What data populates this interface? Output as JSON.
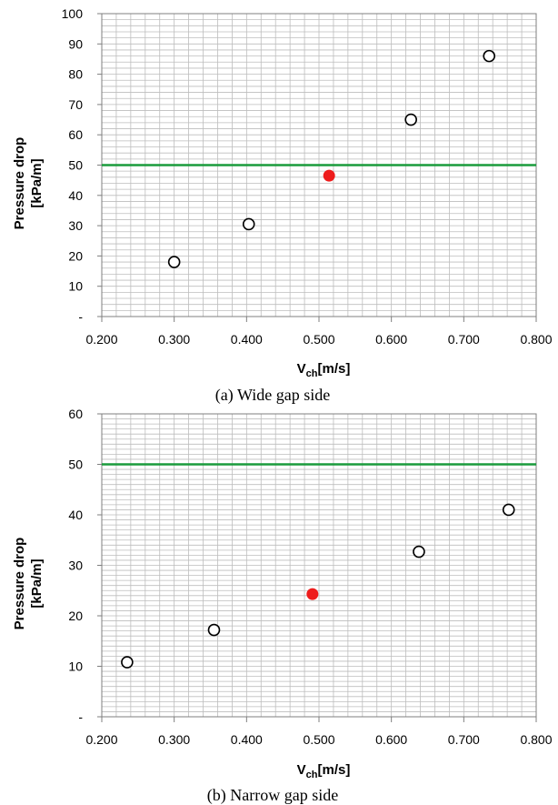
{
  "chart_data": [
    {
      "type": "scatter",
      "xlabel_main": "V",
      "xlabel_sub": "ch",
      "xlabel_rest": "[m/s]",
      "ylabel_line1": "Pressure drop",
      "ylabel_line2": "[kPa/m]",
      "caption": "(a)  Wide  gap  side",
      "xlim": [
        0.2,
        0.8
      ],
      "ylim": [
        0,
        100
      ],
      "x_ticks": [
        0.2,
        0.3,
        0.4,
        0.5,
        0.6,
        0.7,
        0.8
      ],
      "x_tick_labels": [
        "0.200",
        "0.300",
        "0.400",
        "0.500",
        "0.600",
        "0.700",
        "0.800"
      ],
      "y_ticks": [
        0,
        10,
        20,
        30,
        40,
        50,
        60,
        70,
        80,
        90,
        100
      ],
      "y_tick_labels": [
        "-",
        "10",
        "20",
        "30",
        "40",
        "50",
        "60",
        "70",
        "80",
        "90",
        "100"
      ],
      "grid": true,
      "reference_line": {
        "y": 50,
        "color": "#1a9b3c"
      },
      "open_points": [
        {
          "x": 0.3,
          "y": 18
        },
        {
          "x": 0.403,
          "y": 30.5
        },
        {
          "x": 0.627,
          "y": 65
        },
        {
          "x": 0.735,
          "y": 86
        }
      ],
      "highlight_points": [
        {
          "x": 0.514,
          "y": 46.5,
          "color": "#ee1c1c"
        }
      ]
    },
    {
      "type": "scatter",
      "xlabel_main": "V",
      "xlabel_sub": "ch",
      "xlabel_rest": "[m/s]",
      "ylabel_line1": "Pressure drop",
      "ylabel_line2": "[kPa/m]",
      "caption": "(b)  Narrow  gap  side",
      "xlim": [
        0.2,
        0.8
      ],
      "ylim": [
        0,
        60
      ],
      "x_ticks": [
        0.2,
        0.3,
        0.4,
        0.5,
        0.6,
        0.7,
        0.8
      ],
      "x_tick_labels": [
        "0.200",
        "0.300",
        "0.400",
        "0.500",
        "0.600",
        "0.700",
        "0.800"
      ],
      "y_ticks": [
        0,
        10,
        20,
        30,
        40,
        50,
        60
      ],
      "y_tick_labels": [
        "-",
        "10",
        "20",
        "30",
        "40",
        "50",
        "60"
      ],
      "grid": true,
      "reference_line": {
        "y": 50,
        "color": "#1a9b3c"
      },
      "open_points": [
        {
          "x": 0.235,
          "y": 10.8
        },
        {
          "x": 0.355,
          "y": 17.2
        },
        {
          "x": 0.638,
          "y": 32.7
        },
        {
          "x": 0.762,
          "y": 41
        }
      ],
      "highlight_points": [
        {
          "x": 0.491,
          "y": 24.3,
          "color": "#ee1c1c"
        }
      ]
    }
  ]
}
